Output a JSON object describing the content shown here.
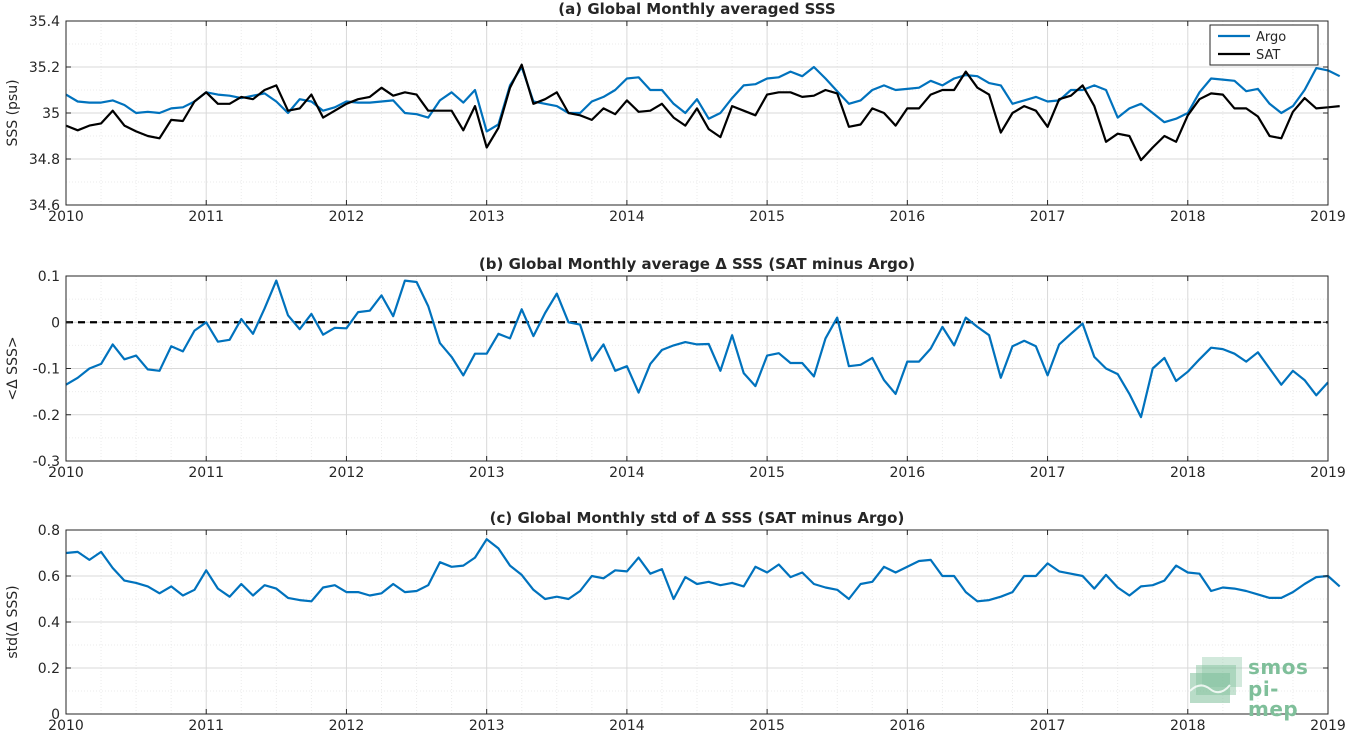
{
  "colors": {
    "argo": "#0072BD",
    "sat": "#000000",
    "zero_line": "#000000",
    "grid": "#d9d9d9",
    "logo": "#7fbf9a"
  },
  "logo": {
    "line1": "smos",
    "line2": "pi-mep"
  },
  "chart_data": [
    {
      "type": "line",
      "title": "(a) Global Monthly averaged SSS",
      "xlabel": "",
      "ylabel": "SSS (psu)",
      "xlim": [
        2010,
        2019
      ],
      "ylim": [
        34.6,
        35.4
      ],
      "xticks": [
        "2010",
        "2011",
        "2012",
        "2013",
        "2014",
        "2015",
        "2016",
        "2017",
        "2018",
        "2019"
      ],
      "yticks": [
        "34.6",
        "34.8",
        "35",
        "35.2",
        "35.4"
      ],
      "ytick_values": [
        34.6,
        34.8,
        35.0,
        35.2,
        35.4
      ],
      "grid": true,
      "legend": {
        "position": "top-right",
        "entries": [
          "Argo",
          "SAT"
        ]
      },
      "x_start": 2010.0,
      "x_step_months": 1,
      "series": [
        {
          "name": "Argo",
          "color": "#0072BD",
          "values": [
            35.08,
            35.05,
            35.045,
            35.045,
            35.055,
            35.035,
            35.0,
            35.005,
            35.0,
            35.02,
            35.025,
            35.05,
            35.09,
            35.08,
            35.075,
            35.065,
            35.075,
            35.085,
            35.05,
            35.0,
            35.06,
            35.05,
            35.01,
            35.025,
            35.05,
            35.045,
            35.045,
            35.05,
            35.055,
            35.0,
            34.995,
            34.98,
            35.055,
            35.09,
            35.045,
            35.1,
            34.92,
            34.95,
            35.12,
            35.2,
            35.05,
            35.04,
            35.03,
            35.0,
            35.0,
            35.05,
            35.07,
            35.1,
            35.15,
            35.155,
            35.1,
            35.1,
            35.04,
            35.0,
            35.06,
            34.975,
            35.0,
            35.065,
            35.12,
            35.125,
            35.15,
            35.155,
            35.18,
            35.16,
            35.2,
            35.15,
            35.095,
            35.04,
            35.055,
            35.1,
            35.12,
            35.1,
            35.105,
            35.11,
            35.14,
            35.12,
            35.15,
            35.165,
            35.16,
            35.13,
            35.12,
            35.04,
            35.055,
            35.07,
            35.05,
            35.055,
            35.1,
            35.1,
            35.12,
            35.1,
            34.98,
            35.02,
            35.04,
            35.0,
            34.96,
            34.975,
            35.0,
            35.09,
            35.15,
            35.145,
            35.14,
            35.095,
            35.105,
            35.04,
            35.0,
            35.03,
            35.1,
            35.195,
            35.185,
            35.16
          ]
        },
        {
          "name": "SAT",
          "color": "#000000",
          "values": [
            34.945,
            34.925,
            34.945,
            34.955,
            35.01,
            34.945,
            34.92,
            34.9,
            34.89,
            34.97,
            34.965,
            35.05,
            35.09,
            35.04,
            35.04,
            35.07,
            35.06,
            35.1,
            35.12,
            35.01,
            35.02,
            35.08,
            34.98,
            35.01,
            35.04,
            35.06,
            35.07,
            35.11,
            35.075,
            35.09,
            35.08,
            35.01,
            35.01,
            35.01,
            34.925,
            35.03,
            34.85,
            34.935,
            35.11,
            35.21,
            35.04,
            35.06,
            35.09,
            35.0,
            34.99,
            34.97,
            35.02,
            34.995,
            35.055,
            35.005,
            35.01,
            35.04,
            34.98,
            34.945,
            35.02,
            34.93,
            34.895,
            35.03,
            35.01,
            34.99,
            35.08,
            35.09,
            35.09,
            35.07,
            35.075,
            35.1,
            35.085,
            34.94,
            34.95,
            35.02,
            35.0,
            34.945,
            35.02,
            35.02,
            35.08,
            35.1,
            35.1,
            35.18,
            35.11,
            35.08,
            34.915,
            35.0,
            35.03,
            35.01,
            34.94,
            35.06,
            35.075,
            35.12,
            35.03,
            34.875,
            34.91,
            34.9,
            34.795,
            34.85,
            34.9,
            34.875,
            34.99,
            35.06,
            35.085,
            35.08,
            35.02,
            35.02,
            34.985,
            34.9,
            34.89,
            35.005,
            35.065,
            35.02,
            35.025,
            35.03
          ]
        }
      ]
    },
    {
      "type": "line",
      "title": "(b) Global Monthly average Δ SSS (SAT minus Argo)",
      "xlabel": "",
      "ylabel": "<Δ SSS>",
      "xlim": [
        2010,
        2019
      ],
      "ylim": [
        -0.3,
        0.1
      ],
      "xticks": [
        "2010",
        "2011",
        "2012",
        "2013",
        "2014",
        "2015",
        "2016",
        "2017",
        "2018",
        "2019"
      ],
      "yticks": [
        "-0.3",
        "-0.2",
        "-0.1",
        "0",
        "0.1"
      ],
      "ytick_values": [
        -0.3,
        -0.2,
        -0.1,
        0.0,
        0.1
      ],
      "grid": true,
      "reference_line": {
        "y": 0,
        "style": "dashed"
      },
      "x_start": 2010.0,
      "x_step_months": 1,
      "series": [
        {
          "color": "#0072BD",
          "values": [
            -0.135,
            -0.12,
            -0.1,
            -0.09,
            -0.048,
            -0.08,
            -0.072,
            -0.102,
            -0.105,
            -0.052,
            -0.063,
            -0.018,
            0.0,
            -0.042,
            -0.038,
            0.007,
            -0.025,
            0.03,
            0.09,
            0.015,
            -0.015,
            0.018,
            -0.027,
            -0.012,
            -0.013,
            0.022,
            0.025,
            0.058,
            0.013,
            0.09,
            0.087,
            0.035,
            -0.045,
            -0.075,
            -0.115,
            -0.068,
            -0.068,
            -0.025,
            -0.035,
            0.028,
            -0.03,
            0.02,
            0.062,
            0.0,
            -0.005,
            -0.083,
            -0.048,
            -0.105,
            -0.095,
            -0.152,
            -0.09,
            -0.06,
            -0.05,
            -0.043,
            -0.048,
            -0.047,
            -0.105,
            -0.028,
            -0.11,
            -0.138,
            -0.072,
            -0.067,
            -0.088,
            -0.088,
            -0.117,
            -0.035,
            0.01,
            -0.095,
            -0.092,
            -0.077,
            -0.125,
            -0.155,
            -0.085,
            -0.085,
            -0.057,
            -0.01,
            -0.05,
            0.01,
            -0.01,
            -0.028,
            -0.12,
            -0.052,
            -0.04,
            -0.052,
            -0.115,
            -0.048,
            -0.025,
            -0.003,
            -0.075,
            -0.1,
            -0.112,
            -0.155,
            -0.205,
            -0.1,
            -0.077,
            -0.127,
            -0.107,
            -0.08,
            -0.055,
            -0.058,
            -0.068,
            -0.085,
            -0.065,
            -0.1,
            -0.135,
            -0.105,
            -0.125,
            -0.158,
            -0.13
          ]
        }
      ]
    },
    {
      "type": "line",
      "title": "(c) Global Monthly std of Δ SSS (SAT minus Argo)",
      "xlabel": "",
      "ylabel": "std(Δ SSS)",
      "xlim": [
        2010,
        2019
      ],
      "ylim": [
        0,
        0.8
      ],
      "xticks": [
        "2010",
        "2011",
        "2012",
        "2013",
        "2014",
        "2015",
        "2016",
        "2017",
        "2018",
        "2019"
      ],
      "yticks": [
        "0",
        "0.2",
        "0.4",
        "0.6",
        "0.8"
      ],
      "ytick_values": [
        0,
        0.2,
        0.4,
        0.6,
        0.8
      ],
      "grid": true,
      "x_start": 2010.0,
      "x_step_months": 1,
      "series": [
        {
          "color": "#0072BD",
          "values": [
            0.7,
            0.705,
            0.67,
            0.705,
            0.635,
            0.58,
            0.57,
            0.555,
            0.525,
            0.555,
            0.515,
            0.54,
            0.625,
            0.545,
            0.51,
            0.565,
            0.515,
            0.56,
            0.545,
            0.505,
            0.495,
            0.49,
            0.55,
            0.56,
            0.53,
            0.53,
            0.515,
            0.525,
            0.565,
            0.53,
            0.535,
            0.56,
            0.66,
            0.64,
            0.645,
            0.68,
            0.76,
            0.72,
            0.645,
            0.605,
            0.54,
            0.5,
            0.51,
            0.5,
            0.535,
            0.6,
            0.59,
            0.625,
            0.62,
            0.68,
            0.61,
            0.63,
            0.5,
            0.595,
            0.565,
            0.575,
            0.56,
            0.57,
            0.555,
            0.64,
            0.615,
            0.65,
            0.595,
            0.615,
            0.565,
            0.55,
            0.54,
            0.5,
            0.565,
            0.575,
            0.64,
            0.615,
            0.64,
            0.665,
            0.67,
            0.6,
            0.6,
            0.53,
            0.49,
            0.495,
            0.51,
            0.53,
            0.6,
            0.6,
            0.655,
            0.62,
            0.61,
            0.6,
            0.545,
            0.605,
            0.55,
            0.515,
            0.555,
            0.56,
            0.58,
            0.645,
            0.615,
            0.61,
            0.535,
            0.55,
            0.545,
            0.535,
            0.52,
            0.505,
            0.505,
            0.53,
            0.565,
            0.595,
            0.6,
            0.555
          ]
        }
      ]
    }
  ]
}
